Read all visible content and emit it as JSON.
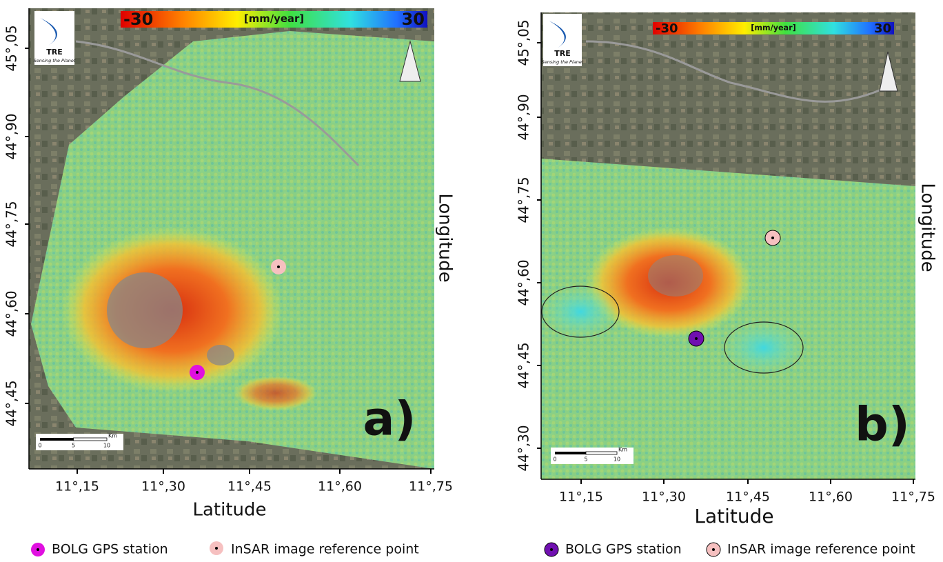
{
  "panels": [
    {
      "label": "a)",
      "colorbar": {
        "min": "-30",
        "unit": "[mm/year]",
        "max": "30"
      },
      "logo": {
        "name": "TRE",
        "tagline": "Sensing the Planet"
      },
      "y_ticks": [
        "45°,05",
        "44°,90",
        "44°,75",
        "44°,60",
        "44°,45"
      ],
      "x_ticks": [
        "11°,15",
        "11°,30",
        "11°,45",
        "11°,60",
        "11°,75"
      ],
      "x_axis_title": "Latitude",
      "y_axis_title": "Longitude",
      "scale_bar": {
        "labels": [
          "0",
          "5",
          "10"
        ],
        "unit": "Km"
      },
      "legend": [
        "BOLG GPS station",
        "InSAR image reference point"
      ]
    },
    {
      "label": "b)",
      "colorbar": {
        "min": "-30",
        "unit": "[mm/year]",
        "max": "30"
      },
      "logo": {
        "name": "TRE",
        "tagline": "Sensing the Planet"
      },
      "y_ticks": [
        "45°,05",
        "44°,90",
        "44°,75",
        "44°,60",
        "44°,45",
        "44°,30"
      ],
      "x_ticks": [
        "11°,15",
        "11°,30",
        "11°,45",
        "11°,60",
        "11°,75"
      ],
      "x_axis_title": "Latitude",
      "y_axis_title": "Longitude",
      "scale_bar": {
        "labels": [
          "0",
          "5",
          "10"
        ],
        "unit": "Km"
      },
      "legend": [
        "BOLG GPS station",
        "InSAR image reference point"
      ]
    }
  ]
}
